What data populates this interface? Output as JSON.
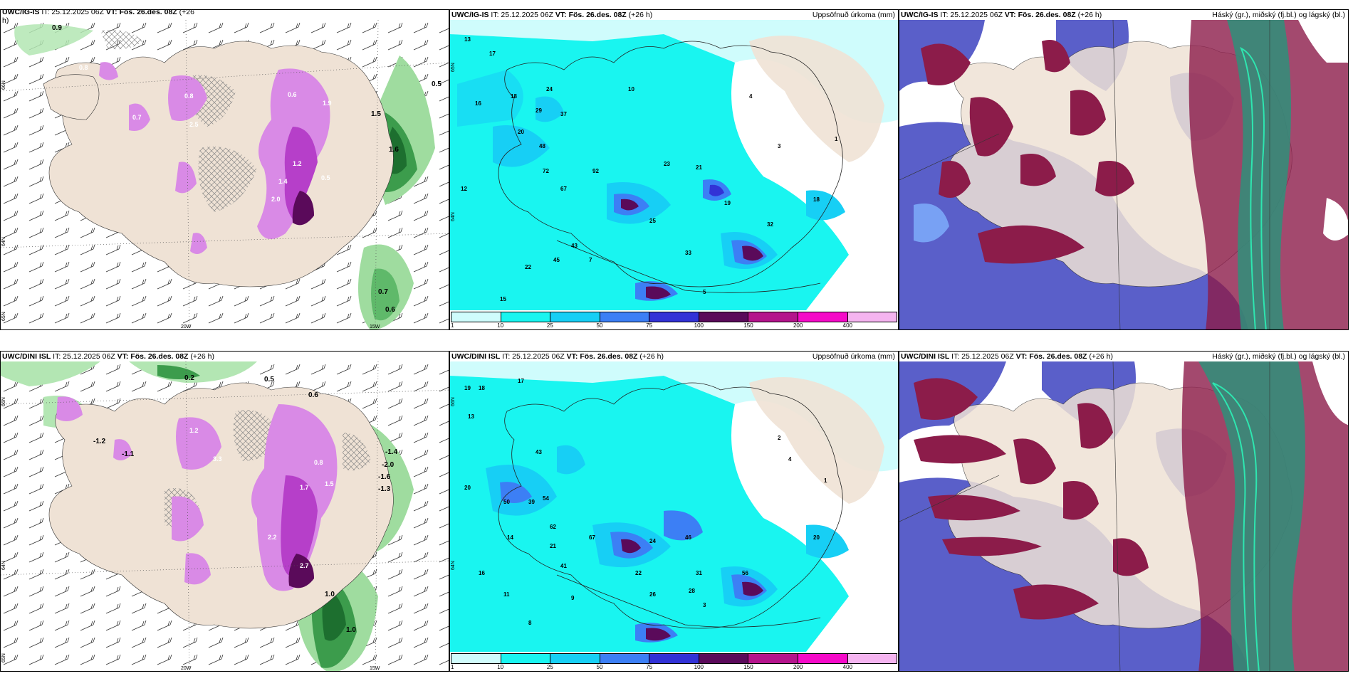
{
  "panels": [
    {
      "id": "top-left",
      "source": "UWC/IG-IS",
      "init_time": "IT: 25.12.2025 06Z",
      "valid_time": "VT: Fös. 26.des. 08Z",
      "lead": "(+26",
      "lead_wrap": "h)",
      "axis": {
        "lat1": "66N",
        "lat2": "64N",
        "lat3": "65N",
        "lon1": "20W",
        "lon2": "15W"
      },
      "values": {
        "v1": "0.9",
        "v2": "0.8",
        "v3": "0.5",
        "v4": "0.6",
        "v5": "1.9",
        "v6": "2.0",
        "v7": "1.2",
        "v8": "1.4",
        "v9": "0.5",
        "v10": "0.7",
        "v11": "0.6",
        "v12": "1.6",
        "v13": "0.8",
        "v14": "2.5",
        "v15": "0.7",
        "v16": "1.5"
      }
    },
    {
      "id": "top-middle",
      "source": "UWC/IG-IS",
      "init_time": "IT: 25.12.2025 06Z",
      "valid_time": "VT: Fös. 26.des. 08Z",
      "lead": "(+26 h)",
      "title": "Uppsöfnuð úrkoma (mm)",
      "axis": {
        "lat1": "65N",
        "lat2": "64N"
      },
      "values": {
        "v1": "13",
        "v2": "17",
        "v3": "16",
        "v4": "18",
        "v5": "20",
        "v6": "24",
        "v7": "29",
        "v8": "37",
        "v9": "48",
        "v10": "72",
        "v11": "67",
        "v12": "92",
        "v13": "23",
        "v14": "21",
        "v15": "25",
        "v16": "43",
        "v17": "45",
        "v18": "33",
        "v19": "19",
        "v20": "32",
        "v21": "18",
        "v22": "4",
        "v23": "3",
        "v24": "1",
        "v25": "10",
        "v26": "12",
        "v27": "7",
        "v28": "5",
        "v29": "15",
        "v30": "22"
      }
    },
    {
      "id": "top-right",
      "source": "UWC/IG-IS",
      "init_time": "IT: 25.12.2025 06Z",
      "valid_time": "VT: Fös. 26.des. 08Z",
      "lead": "(+26 h)",
      "title": "Háský (gr.), miðský (fj.bl.) og lágský (bl.)"
    },
    {
      "id": "bottom-left",
      "source": "UWC/DINI ISL",
      "init_time": "IT: 25.12.2025 06Z",
      "valid_time": "VT: Fös. 26.des. 08Z",
      "lead": "(+26 h)",
      "axis": {
        "lat1": "66N",
        "lat2": "64N",
        "lat3": "65N",
        "lon1": "20W",
        "lon2": "15W"
      },
      "values": {
        "v1": "0.2",
        "v2": "0.5",
        "v3": "0.6",
        "v4": "-1.2",
        "v5": "-1.1",
        "v6": "-1.4",
        "v7": "-2.0",
        "v8": "-1.6",
        "v9": "-1.3",
        "v10": "1.0",
        "v11": "1.0",
        "v12": "1.5",
        "v13": "2.2",
        "v14": "2.7",
        "v15": "1.7",
        "v16": "0.8",
        "v17": "3.3",
        "v18": "1.2"
      }
    },
    {
      "id": "bottom-middle",
      "source": "UWC/DINI ISL",
      "init_time": "IT: 25.12.2025 06Z",
      "valid_time": "VT: Fös. 26.des. 08Z",
      "lead": "(+26 h)",
      "title": "Uppsöfnuð úrkoma (mm)",
      "axis": {
        "lat1": "66N",
        "lat2": "64N"
      },
      "values": {
        "v1": "19",
        "v2": "18",
        "v3": "17",
        "v4": "13",
        "v5": "20",
        "v6": "50",
        "v7": "39",
        "v8": "54",
        "v9": "43",
        "v10": "62",
        "v11": "67",
        "v12": "21",
        "v13": "41",
        "v14": "9",
        "v15": "24",
        "v16": "46",
        "v17": "31",
        "v18": "28",
        "v19": "56",
        "v20": "20",
        "v21": "22",
        "v22": "8",
        "v23": "3",
        "v24": "2",
        "v25": "4",
        "v26": "1",
        "v27": "11",
        "v28": "16",
        "v29": "14",
        "v30": "26"
      }
    },
    {
      "id": "bottom-right",
      "source": "UWC/DINI ISL",
      "init_time": "IT: 25.12.2025 06Z",
      "valid_time": "VT: Fös. 26.des. 08Z",
      "lead": "(+26 h)",
      "title": "Háský (gr.), miðský (fj.bl.) og lágský (bl.)"
    }
  ],
  "colorbar": {
    "ticks": [
      "1",
      "10",
      "25",
      "50",
      "75",
      "100",
      "150",
      "200",
      "400"
    ],
    "colors": [
      "#cffcfc",
      "#19f5f0",
      "#17cff5",
      "#3c7ff5",
      "#3232d6",
      "#5a0a5a",
      "#b4148c",
      "#f50ac8",
      "#f5b4f0"
    ]
  },
  "colors": {
    "land": "#efe2d5",
    "wind_snow": "#c74ad9",
    "wind_pos": "#1d7f2f",
    "cloud_high": "#8c1c4a",
    "cloud_mid": "#5a5fc9",
    "cloud_low": "#2f8f7a"
  }
}
